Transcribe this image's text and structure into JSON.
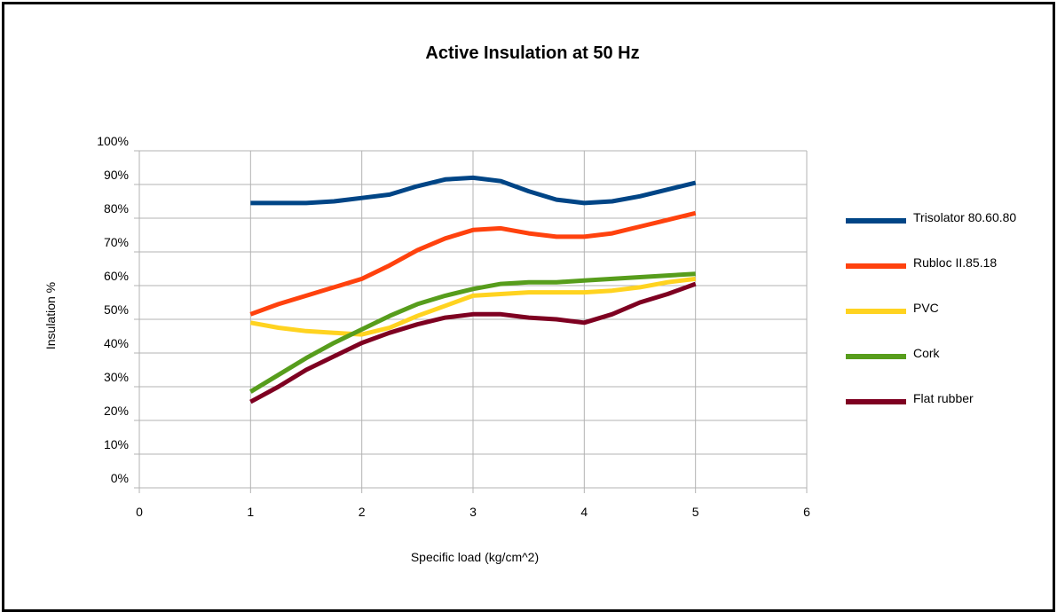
{
  "chart_data": {
    "type": "line",
    "title": "Active Insulation at 50 Hz",
    "xlabel": "Specific load (kg/cm^2)",
    "ylabel": "Insulation %",
    "xlim": [
      0,
      6
    ],
    "ylim": [
      0,
      100
    ],
    "x_ticks": [
      0,
      1,
      2,
      3,
      4,
      5,
      6
    ],
    "y_ticks": [
      0,
      10,
      20,
      30,
      40,
      50,
      60,
      70,
      80,
      90,
      100
    ],
    "y_tick_suffix": "%",
    "grid": true,
    "legend_position": "right",
    "x": [
      1,
      1.25,
      1.5,
      1.75,
      2,
      2.25,
      2.5,
      2.75,
      3,
      3.25,
      3.5,
      3.75,
      4,
      4.25,
      4.5,
      4.75,
      5
    ],
    "series": [
      {
        "name": "Trisolator 80.60.80",
        "color": "#004586",
        "values": [
          84.5,
          84.5,
          84.5,
          85,
          86,
          87,
          89.5,
          91.5,
          92,
          91,
          88,
          85.5,
          84.5,
          85,
          86.5,
          88.5,
          90.5
        ]
      },
      {
        "name": "Rubloc II.85.18",
        "color": "#ff420e",
        "values": [
          51.5,
          54.5,
          57,
          59.5,
          62,
          66,
          70.5,
          74,
          76.5,
          77,
          75.5,
          74.5,
          74.5,
          75.5,
          77.5,
          79.5,
          81.5
        ]
      },
      {
        "name": "PVC",
        "color": "#ffd320",
        "values": [
          49,
          47.5,
          46.5,
          46,
          45.5,
          47.5,
          51,
          54,
          57,
          57.5,
          58,
          58,
          58,
          58.5,
          59.5,
          61,
          62
        ]
      },
      {
        "name": "Cork",
        "color": "#579d1c",
        "values": [
          28.5,
          33.5,
          38.5,
          43,
          47,
          51,
          54.5,
          57,
          59,
          60.5,
          61,
          61,
          61.5,
          62,
          62.5,
          63,
          63.5
        ]
      },
      {
        "name": "Flat rubber",
        "color": "#7e0021",
        "values": [
          25.5,
          30,
          35,
          39,
          43,
          46,
          48.5,
          50.5,
          51.5,
          51.5,
          50.5,
          50,
          49,
          51.5,
          55,
          57.5,
          60.5
        ]
      }
    ]
  }
}
